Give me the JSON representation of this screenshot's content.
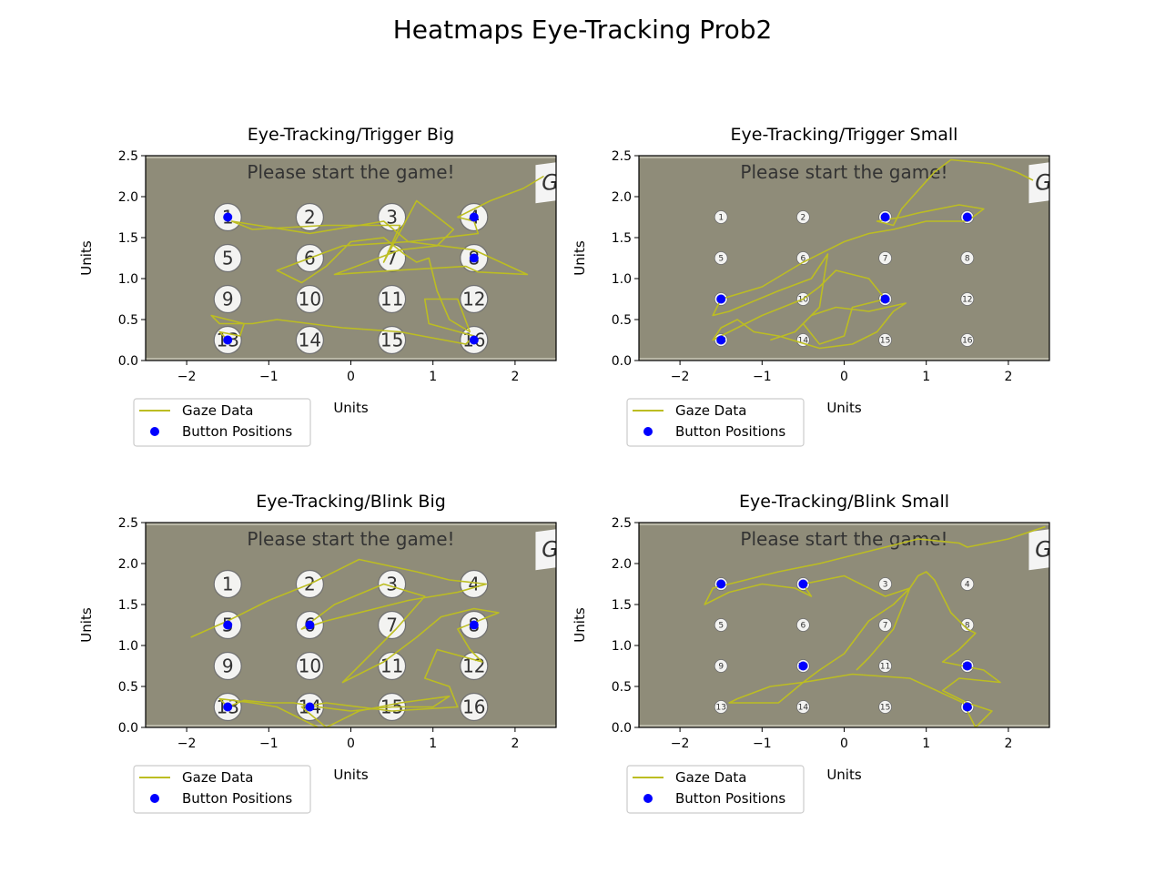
{
  "figure": {
    "title": "Heatmaps Eye-Tracking Prob2"
  },
  "colors": {
    "gaze": "#bcbd22",
    "button": "#0000ff",
    "screen_bg": "#8f8c79",
    "screen_edge": "#b9b7a6",
    "circle_fill": "#f3f3f1",
    "circle_stroke": "#6f6f6f",
    "label_text": "#333333"
  },
  "screen": {
    "message": "Please start the game!",
    "logo": "G",
    "x_extent": [
      -2.5,
      2.5
    ],
    "y_extent": [
      0.0,
      2.5
    ],
    "button_grid": {
      "columns_x": [
        -1.5,
        -0.5,
        0.5,
        1.5
      ],
      "rows_y": [
        1.75,
        1.25,
        0.75,
        0.25
      ],
      "labels": [
        "1",
        "2",
        "3",
        "4",
        "5",
        "6",
        "7",
        "8",
        "9",
        "10",
        "11",
        "12",
        "13",
        "14",
        "15",
        "16"
      ]
    }
  },
  "chart_data": [
    {
      "type": "line",
      "title": "Eye-Tracking/Trigger Big",
      "xlabel": "Units",
      "ylabel": "Units",
      "xlim": [
        -2.5,
        2.5
      ],
      "ylim": [
        0.0,
        2.5
      ],
      "xticks": [
        -2,
        -1,
        0,
        1,
        2
      ],
      "yticks": [
        0.0,
        0.5,
        1.0,
        1.5,
        2.0,
        2.5
      ],
      "button_size": "big",
      "legend": {
        "placement": "bottom-left-outside",
        "entries": [
          "Gaze Data",
          "Button Positions"
        ]
      },
      "series": [
        {
          "name": "Gaze Data",
          "kind": "line",
          "x": [
            2.35,
            2.1,
            1.7,
            1.3,
            1.5,
            1.55,
            0.7,
            0.4,
            -0.5,
            -1.45,
            -1.2,
            -0.3,
            0.6,
            0.4,
            0.8,
            1.25,
            1.05,
            0.6,
            -0.2,
            0.55,
            1.4,
            1.55,
            2.15,
            1.5,
            0.7,
            -0.1,
            -0.9,
            -0.6,
            -0.3,
            0.0,
            0.4,
            0.65,
            0.8,
            0.95,
            1.05,
            1.2,
            1.45,
            1.3,
            0.9,
            0.95,
            1.5,
            1.4,
            0.6,
            -0.1,
            -0.9,
            -1.2,
            -1.6,
            -1.7,
            -1.3,
            -1.35,
            -1.6,
            -1.5
          ],
          "y": [
            2.25,
            2.1,
            1.95,
            1.75,
            1.7,
            1.55,
            1.45,
            1.7,
            1.55,
            1.7,
            1.6,
            1.65,
            1.65,
            1.2,
            1.95,
            1.6,
            1.4,
            1.35,
            1.05,
            1.1,
            1.15,
            1.08,
            1.05,
            1.35,
            1.45,
            1.4,
            1.1,
            0.95,
            1.15,
            1.45,
            1.5,
            1.3,
            1.2,
            1.25,
            0.85,
            0.5,
            0.35,
            0.75,
            0.75,
            0.45,
            0.3,
            0.2,
            0.35,
            0.4,
            0.5,
            0.45,
            0.45,
            0.55,
            0.45,
            0.3,
            0.35,
            0.25
          ]
        },
        {
          "name": "Button Positions",
          "kind": "points",
          "x": [
            -1.5,
            1.5,
            1.5,
            1.5,
            -1.5
          ],
          "y": [
            1.75,
            1.75,
            1.25,
            0.25,
            0.25
          ]
        }
      ]
    },
    {
      "type": "line",
      "title": "Eye-Tracking/Trigger Small",
      "xlabel": "Units",
      "ylabel": "Units",
      "xlim": [
        -2.5,
        2.5
      ],
      "ylim": [
        0.0,
        2.5
      ],
      "xticks": [
        -2,
        -1,
        0,
        1,
        2
      ],
      "yticks": [
        0.0,
        0.5,
        1.0,
        1.5,
        2.0,
        2.5
      ],
      "button_size": "small",
      "legend": {
        "placement": "bottom-left-outside",
        "entries": [
          "Gaze Data",
          "Button Positions"
        ]
      },
      "series": [
        {
          "name": "Gaze Data",
          "kind": "line",
          "x": [
            2.3,
            2.1,
            1.8,
            1.3,
            1.1,
            0.7,
            0.6,
            0.4,
            0.7,
            0.9,
            1.4,
            1.7,
            1.5,
            1.0,
            0.6,
            0.3,
            0.0,
            -0.5,
            -1.0,
            -1.5,
            -1.6,
            -1.4,
            -0.8,
            -0.4,
            -0.2,
            -0.3,
            -0.5,
            -0.3,
            0.0,
            0.1,
            0.5,
            0.3,
            -0.1,
            -0.3,
            -0.5,
            -1.0,
            -1.5,
            -1.6,
            -1.5,
            -1.3,
            -1.1,
            -0.8,
            -0.3,
            0.1,
            0.4,
            0.6,
            0.75,
            0.3,
            -0.1,
            -0.4,
            -0.6,
            -0.9
          ],
          "y": [
            2.2,
            2.3,
            2.4,
            2.45,
            2.3,
            1.85,
            1.65,
            1.7,
            1.75,
            1.8,
            1.9,
            1.85,
            1.7,
            1.7,
            1.6,
            1.55,
            1.45,
            1.2,
            0.9,
            0.75,
            0.55,
            0.6,
            0.85,
            1.0,
            1.3,
            0.65,
            0.45,
            0.2,
            0.3,
            0.65,
            0.75,
            1.0,
            1.1,
            0.9,
            0.75,
            0.55,
            0.3,
            0.25,
            0.4,
            0.5,
            0.35,
            0.3,
            0.15,
            0.2,
            0.35,
            0.6,
            0.7,
            0.6,
            0.65,
            0.55,
            0.35,
            0.25
          ]
        },
        {
          "name": "Button Positions",
          "kind": "points",
          "x": [
            0.5,
            1.5,
            -1.5,
            0.5,
            -1.5
          ],
          "y": [
            1.75,
            1.75,
            0.75,
            0.75,
            0.25
          ]
        }
      ]
    },
    {
      "type": "line",
      "title": "Eye-Tracking/Blink Big",
      "xlabel": "Units",
      "ylabel": "Units",
      "xlim": [
        -2.5,
        2.5
      ],
      "ylim": [
        0.0,
        2.5
      ],
      "xticks": [
        -2,
        -1,
        0,
        1,
        2
      ],
      "yticks": [
        0.0,
        0.5,
        1.0,
        1.5,
        2.0,
        2.5
      ],
      "button_size": "big",
      "legend": {
        "placement": "bottom-left-outside",
        "entries": [
          "Gaze Data",
          "Button Positions"
        ]
      },
      "series": [
        {
          "name": "Gaze Data",
          "kind": "line",
          "x": [
            -1.95,
            -1.5,
            -1.0,
            -0.5,
            0.1,
            0.8,
            1.2,
            1.65,
            1.3,
            0.7,
            0.3,
            -0.3,
            -0.6,
            -0.2,
            0.4,
            0.9,
            0.55,
            0.2,
            -0.1,
            0.4,
            0.8,
            1.1,
            1.5,
            1.8,
            1.3,
            1.45,
            1.6,
            1.05,
            0.9,
            1.2,
            1.3,
            0.5,
            0.1,
            -0.3,
            -0.6,
            -0.3,
            0.1,
            0.6,
            1.2,
            1.0,
            0.5,
            0.0,
            -0.4,
            -0.7,
            -1.0,
            -1.3,
            -1.5,
            -1.6,
            -1.2,
            -0.9,
            -0.6,
            -0.4
          ],
          "y": [
            1.1,
            1.3,
            1.55,
            1.75,
            2.05,
            1.9,
            1.8,
            1.75,
            1.65,
            1.55,
            1.45,
            1.3,
            1.2,
            1.5,
            1.75,
            1.6,
            1.2,
            0.85,
            0.55,
            0.8,
            1.1,
            1.35,
            1.45,
            1.4,
            1.2,
            0.95,
            0.8,
            0.95,
            0.6,
            0.5,
            0.25,
            0.2,
            0.25,
            0.3,
            0.25,
            0.0,
            0.2,
            0.3,
            0.38,
            0.25,
            0.25,
            0.2,
            0.25,
            0.3,
            0.3,
            0.33,
            0.25,
            0.35,
            0.3,
            0.25,
            0.1,
            0.0
          ]
        },
        {
          "name": "Button Positions",
          "kind": "points",
          "x": [
            -1.5,
            -0.5,
            1.5,
            -1.5,
            -0.5
          ],
          "y": [
            1.25,
            1.25,
            1.25,
            0.25,
            0.25
          ]
        }
      ]
    },
    {
      "type": "line",
      "title": "Eye-Tracking/Blink Small",
      "xlabel": "Units",
      "ylabel": "Units",
      "xlim": [
        -2.5,
        2.5
      ],
      "ylim": [
        0.0,
        2.5
      ],
      "xticks": [
        -2,
        -1,
        0,
        1,
        2
      ],
      "yticks": [
        0.0,
        0.5,
        1.0,
        1.5,
        2.0,
        2.5
      ],
      "button_size": "small",
      "legend": {
        "placement": "bottom-left-outside",
        "entries": [
          "Gaze Data",
          "Button Positions"
        ]
      },
      "series": [
        {
          "name": "Gaze Data",
          "kind": "line",
          "x": [
            2.45,
            2.0,
            1.5,
            1.4,
            0.9,
            0.5,
            0.1,
            -0.3,
            -0.8,
            -1.2,
            -1.6,
            -1.7,
            -1.4,
            -1.0,
            -0.6,
            -0.4,
            -0.5,
            0.0,
            0.5,
            0.8,
            0.9,
            1.0,
            1.1,
            1.3,
            1.5,
            1.6,
            1.4,
            1.2,
            1.7,
            1.9,
            1.4,
            1.2,
            1.5,
            1.8,
            1.6,
            1.45,
            0.8,
            0.1,
            -0.5,
            -0.9,
            -1.3,
            -1.4,
            -0.8,
            -0.5,
            -0.3,
            0.0,
            0.3,
            0.6,
            0.8,
            0.6,
            0.3,
            0.15
          ],
          "y": [
            2.45,
            2.3,
            2.2,
            2.25,
            2.3,
            2.2,
            2.1,
            2.0,
            1.9,
            1.8,
            1.7,
            1.5,
            1.65,
            1.75,
            1.7,
            1.6,
            1.75,
            1.85,
            1.6,
            1.7,
            1.85,
            1.9,
            1.8,
            1.4,
            1.2,
            1.15,
            0.95,
            0.8,
            0.7,
            0.55,
            0.6,
            0.45,
            0.3,
            0.2,
            0.0,
            0.3,
            0.6,
            0.65,
            0.55,
            0.5,
            0.35,
            0.3,
            0.3,
            0.55,
            0.7,
            0.9,
            1.3,
            1.5,
            1.7,
            1.2,
            0.85,
            0.7
          ]
        },
        {
          "name": "Button Positions",
          "kind": "points",
          "x": [
            -1.5,
            -0.5,
            -0.5,
            1.5,
            1.5
          ],
          "y": [
            1.75,
            1.75,
            0.75,
            0.75,
            0.25
          ]
        }
      ]
    }
  ]
}
